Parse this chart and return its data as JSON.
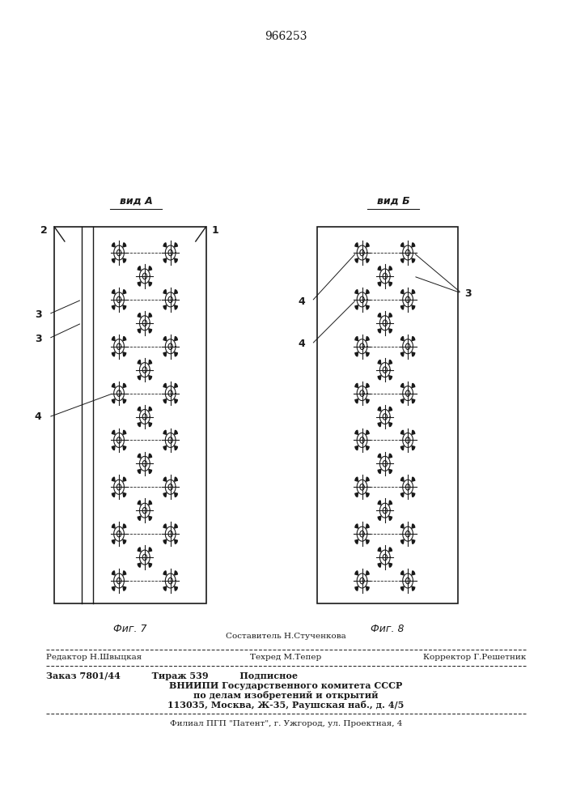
{
  "title_number": "966253",
  "fig7_label": "вид А",
  "fig8_label": "вид Б",
  "fig7_caption": "Фиг. 7",
  "fig8_caption": "Фиг. 8",
  "line_color": "#1a1a1a",
  "footer_line0": "Составитель Н.Стученкова",
  "footer_line1_left": "Редактор Н.Швыцкая",
  "footer_line1_center": "Техред М.Тепер",
  "footer_line1_right": "Корректор Г.Решетник",
  "footer_line2": "Заказ 7801/44          Тираж 539          Подписное",
  "footer_line3": "ВНИИПИ Государственного комитета СССР",
  "footer_line4": "по делам изобретений и открытий",
  "footer_line5": "113035, Москва, Ж-35, Раушская наб., д. 4/5",
  "footer_line6": "Филиал ПГП \"Патент\", г. Ужгород, ул. Проектная, 4"
}
